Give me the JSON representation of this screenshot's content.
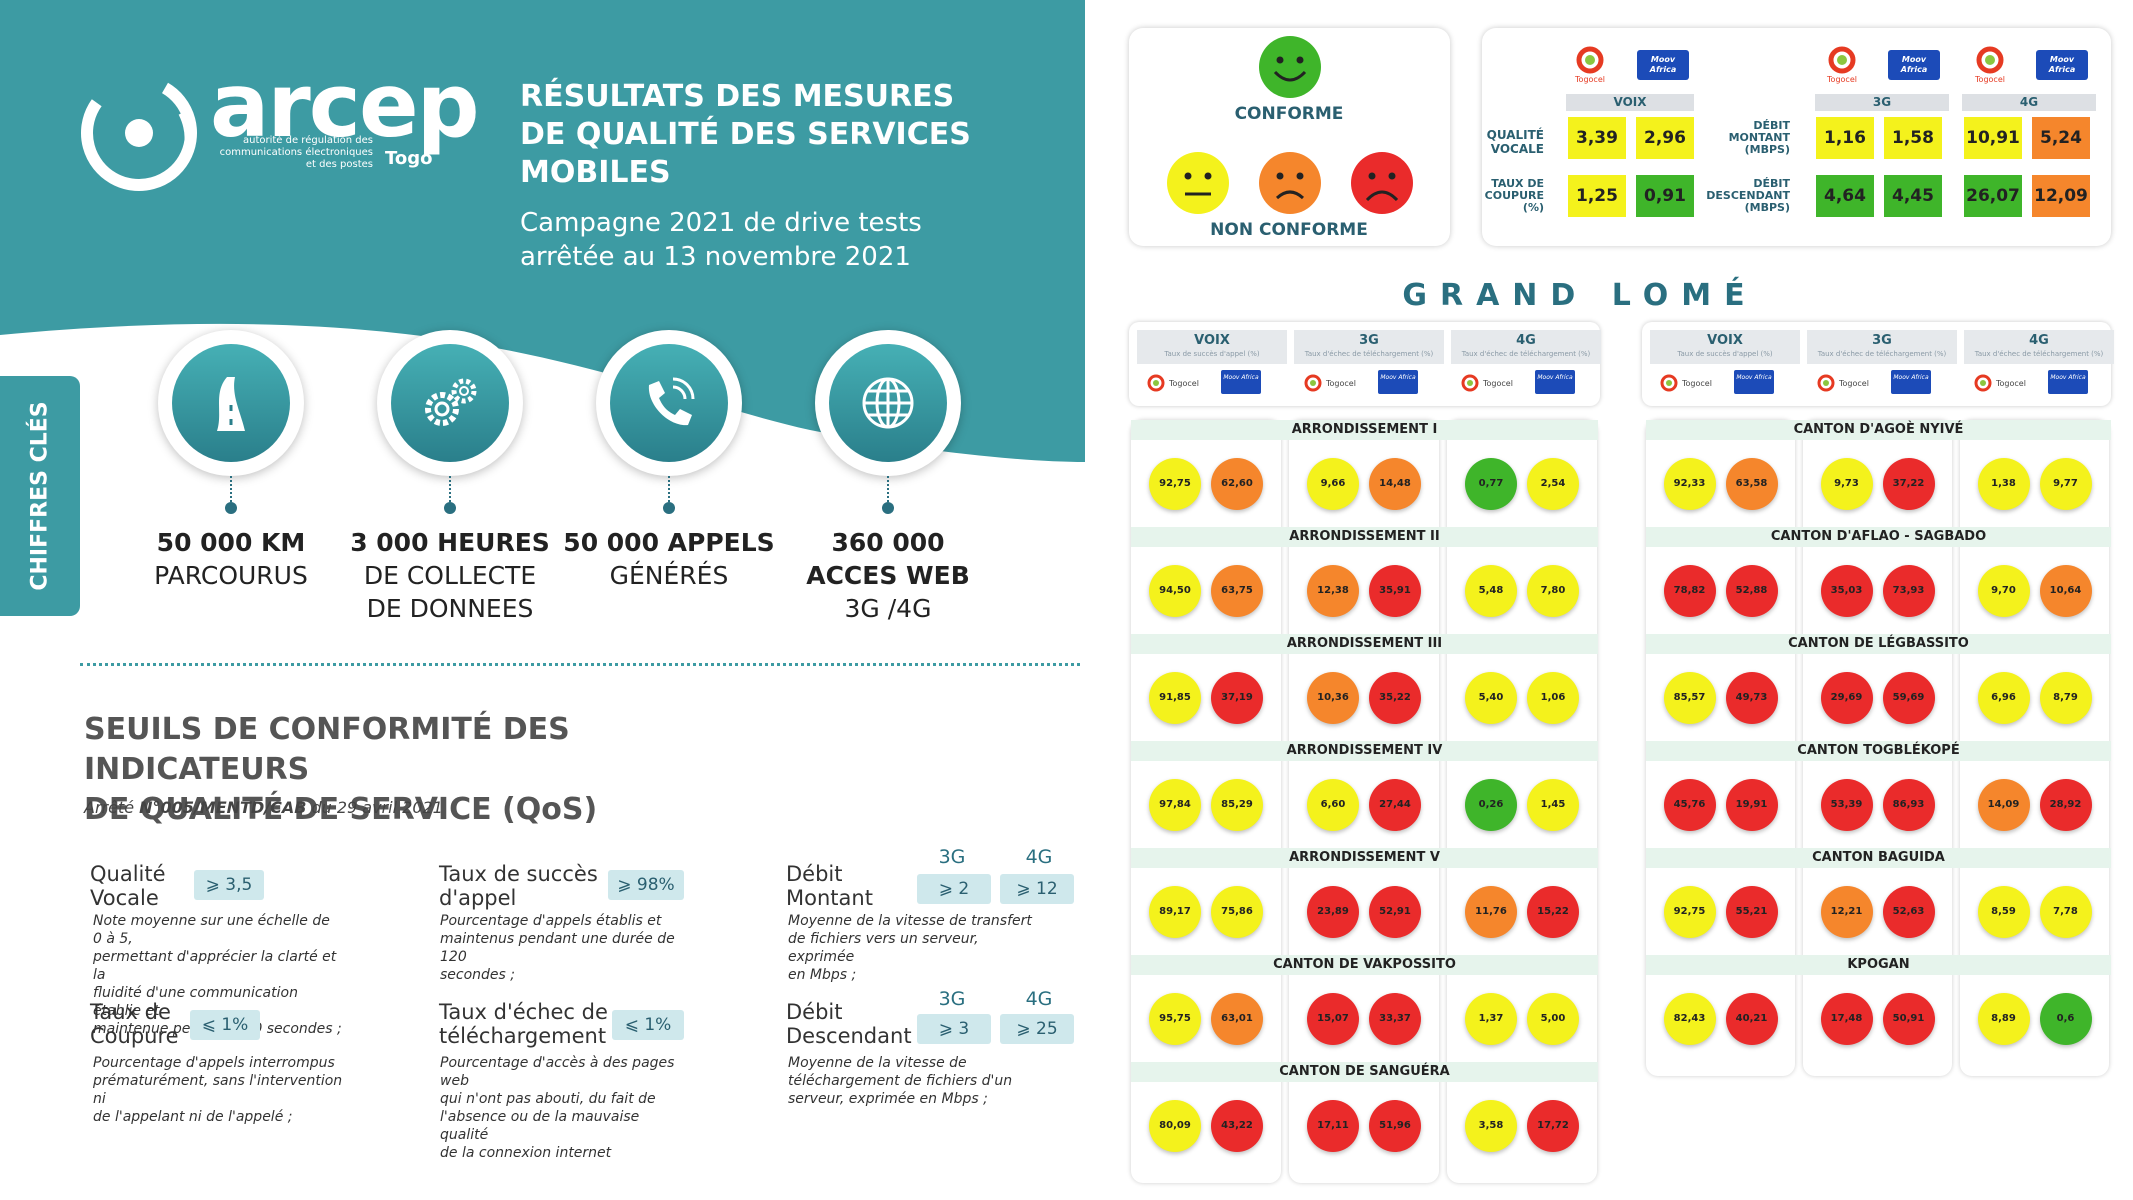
{
  "logo": {
    "text": "arcep",
    "subtitle_lines": [
      "autorité de régulation des",
      "communications électroniques",
      "et des postes"
    ],
    "country": "Togo"
  },
  "title_lines": [
    "RÉSULTATS DES MESURES",
    "DE QUALITÉ DES SERVICES",
    "MOBILES"
  ],
  "subtitle_lines": [
    "Campagne 2021 de drive tests",
    "arrêtée au 13 novembre 2021"
  ],
  "side_tab": "CHIFFRES CLÉS",
  "key_figures": [
    {
      "icon": "road-icon",
      "line1": "50 000 KM",
      "line2": "PARCOURUS",
      "line3": ""
    },
    {
      "icon": "gears-icon",
      "line1": "3 000 HEURES",
      "line2": "DE COLLECTE",
      "line3": "DE DONNEES"
    },
    {
      "icon": "phone-call-icon",
      "line1": "50 000 APPELS",
      "line2": "GÉNÉRÉS",
      "line3": ""
    },
    {
      "icon": "globe-icon",
      "line1": "360 000",
      "line2": "ACCES WEB",
      "line3": "3G /4G"
    }
  ],
  "thresholds": {
    "title_lines": [
      "SEUILS DE CONFORMITÉ DES INDICATEURS",
      "DE QUALITÉ DE SERVICE (QoS)"
    ],
    "arrete_prefix": "Arrêté ",
    "arrete_ref": "N°005/MENTD/CAB",
    "arrete_suffix": " du 29 avril 2021",
    "qualite_vocale": {
      "name_lines": [
        "Qualité",
        "Vocale"
      ],
      "threshold": "⩾ 3,5",
      "desc_lines": [
        "Note moyenne sur une échelle de 0 à 5,",
        "permettant d'apprécier la clarté et la",
        "fluidité d'une communication établie et",
        "maintenue pendant 120 secondes ;"
      ]
    },
    "taux_succes": {
      "name_lines": [
        "Taux de succès",
        "d'appel"
      ],
      "threshold": "⩾ 98%",
      "desc_lines": [
        "Pourcentage d'appels établis et",
        "maintenus pendant une durée de 120",
        "secondes ;"
      ]
    },
    "debit_montant": {
      "name_lines": [
        "Débit",
        "Montant"
      ],
      "head_3g": "3G",
      "head_4g": "4G",
      "threshold_3g": "⩾ 2",
      "threshold_4g": "⩾ 12",
      "desc_lines": [
        "Moyenne de la vitesse de transfert",
        "de fichiers vers un serveur, exprimée",
        "en Mbps ;"
      ]
    },
    "taux_coupure": {
      "name_lines": [
        "Taux de",
        "Coupure"
      ],
      "threshold": "⩽ 1%",
      "desc_lines": [
        "Pourcentage d'appels interrompus",
        "prématurément, sans l'intervention ni",
        "de l'appelant ni de l'appelé ;"
      ]
    },
    "taux_echec": {
      "name_lines": [
        "Taux d'échec de",
        "téléchargement"
      ],
      "threshold": "⩽ 1%",
      "desc_lines": [
        "Pourcentage d'accès à des pages web",
        "qui n'ont pas abouti, du fait de",
        "l'absence ou de la mauvaise qualité",
        "de la connexion internet"
      ]
    },
    "debit_descendant": {
      "name_lines": [
        "Débit",
        "Descendant"
      ],
      "head_3g": "3G",
      "head_4g": "4G",
      "threshold_3g": "⩾ 3",
      "threshold_4g": "⩾ 25",
      "desc_lines": [
        "Moyenne de la vitesse de",
        "téléchargement de fichiers d'un",
        "serveur, exprimée en Mbps ;"
      ]
    }
  },
  "legend": {
    "conforme": "CONFORME",
    "non_conforme": "NON CONFORME",
    "colors": {
      "green": "#3fb52a",
      "yellow": "#f4f21c",
      "orange": "#f5862c",
      "red": "#ea2b2b"
    }
  },
  "operators": {
    "togocel": "Togocel",
    "moov": "Moov Africa"
  },
  "national": {
    "voix_head": "VOIX",
    "head_3g": "3G",
    "head_4g": "4G",
    "qualite_vocale_label": [
      "QUALITÉ",
      "VOCALE"
    ],
    "taux_coupure_label": [
      "TAUX DE",
      "COUPURE",
      "(%)"
    ],
    "debit_montant_label": [
      "DÉBIT",
      "MONTANT",
      "(MBPS)"
    ],
    "debit_descendant_label": [
      "DÉBIT",
      "DESCENDANT",
      "(MBPS)"
    ],
    "qualite_vocale": [
      {
        "v": "3,39",
        "c": "y"
      },
      {
        "v": "2,96",
        "c": "y"
      }
    ],
    "taux_coupure": [
      {
        "v": "1,25",
        "c": "y"
      },
      {
        "v": "0,91",
        "c": "g"
      }
    ],
    "debit_montant": [
      {
        "v": "1,16",
        "c": "y"
      },
      {
        "v": "1,58",
        "c": "y"
      },
      {
        "v": "10,91",
        "c": "y"
      },
      {
        "v": "5,24",
        "c": "o"
      }
    ],
    "debit_descendant": [
      {
        "v": "4,64",
        "c": "g"
      },
      {
        "v": "4,45",
        "c": "g"
      },
      {
        "v": "26,07",
        "c": "g"
      },
      {
        "v": "12,09",
        "c": "o"
      }
    ]
  },
  "grand_lome": {
    "title": "GRAND LOMÉ",
    "col_headers": [
      {
        "name": "VOIX",
        "sub": "Taux de succès d'appel (%)"
      },
      {
        "name": "3G",
        "sub": "Taux d'échec de téléchargement (%)"
      },
      {
        "name": "4G",
        "sub": "Taux d'échec de téléchargement (%)"
      }
    ],
    "left": [
      {
        "name": "ARRONDISSEMENT I",
        "vals": [
          [
            "92,75",
            "y"
          ],
          [
            "62,60",
            "o"
          ],
          [
            "9,66",
            "y"
          ],
          [
            "14,48",
            "o"
          ],
          [
            "0,77",
            "g"
          ],
          [
            "2,54",
            "y"
          ]
        ]
      },
      {
        "name": "ARRONDISSEMENT II",
        "vals": [
          [
            "94,50",
            "y"
          ],
          [
            "63,75",
            "o"
          ],
          [
            "12,38",
            "o"
          ],
          [
            "35,91",
            "r"
          ],
          [
            "5,48",
            "y"
          ],
          [
            "7,80",
            "y"
          ]
        ]
      },
      {
        "name": "ARRONDISSEMENT III",
        "vals": [
          [
            "91,85",
            "y"
          ],
          [
            "37,19",
            "r"
          ],
          [
            "10,36",
            "o"
          ],
          [
            "35,22",
            "r"
          ],
          [
            "5,40",
            "y"
          ],
          [
            "1,06",
            "y"
          ]
        ]
      },
      {
        "name": "ARRONDISSEMENT IV",
        "vals": [
          [
            "97,84",
            "y"
          ],
          [
            "85,29",
            "y"
          ],
          [
            "6,60",
            "y"
          ],
          [
            "27,44",
            "r"
          ],
          [
            "0,26",
            "g"
          ],
          [
            "1,45",
            "y"
          ]
        ]
      },
      {
        "name": "ARRONDISSEMENT V",
        "vals": [
          [
            "89,17",
            "y"
          ],
          [
            "75,86",
            "y"
          ],
          [
            "23,89",
            "r"
          ],
          [
            "52,91",
            "r"
          ],
          [
            "11,76",
            "o"
          ],
          [
            "15,22",
            "r"
          ]
        ]
      },
      {
        "name": "CANTON DE VAKPOSSITO",
        "vals": [
          [
            "95,75",
            "y"
          ],
          [
            "63,01",
            "o"
          ],
          [
            "15,07",
            "r"
          ],
          [
            "33,37",
            "r"
          ],
          [
            "1,37",
            "y"
          ],
          [
            "5,00",
            "y"
          ]
        ]
      },
      {
        "name": "CANTON DE SANGUÉRA",
        "vals": [
          [
            "80,09",
            "y"
          ],
          [
            "43,22",
            "r"
          ],
          [
            "17,11",
            "r"
          ],
          [
            "51,96",
            "r"
          ],
          [
            "3,58",
            "y"
          ],
          [
            "17,72",
            "r"
          ]
        ]
      }
    ],
    "right": [
      {
        "name": "CANTON D'AGOÈ NYIVÉ",
        "vals": [
          [
            "92,33",
            "y"
          ],
          [
            "63,58",
            "o"
          ],
          [
            "9,73",
            "y"
          ],
          [
            "37,22",
            "r"
          ],
          [
            "1,38",
            "y"
          ],
          [
            "9,77",
            "y"
          ]
        ]
      },
      {
        "name": "CANTON D'AFLAO - SAGBADO",
        "vals": [
          [
            "78,82",
            "r"
          ],
          [
            "52,88",
            "r"
          ],
          [
            "35,03",
            "r"
          ],
          [
            "73,93",
            "r"
          ],
          [
            "9,70",
            "y"
          ],
          [
            "10,64",
            "o"
          ]
        ]
      },
      {
        "name": "CANTON DE LÉGBASSITO",
        "vals": [
          [
            "85,57",
            "y"
          ],
          [
            "49,73",
            "r"
          ],
          [
            "29,69",
            "r"
          ],
          [
            "59,69",
            "r"
          ],
          [
            "6,96",
            "y"
          ],
          [
            "8,79",
            "y"
          ]
        ]
      },
      {
        "name": "CANTON TOGBLÉKOPÉ",
        "vals": [
          [
            "45,76",
            "r"
          ],
          [
            "19,91",
            "r"
          ],
          [
            "53,39",
            "r"
          ],
          [
            "86,93",
            "r"
          ],
          [
            "14,09",
            "o"
          ],
          [
            "28,92",
            "r"
          ]
        ]
      },
      {
        "name": "CANTON BAGUIDA",
        "vals": [
          [
            "92,75",
            "y"
          ],
          [
            "55,21",
            "r"
          ],
          [
            "12,21",
            "o"
          ],
          [
            "52,63",
            "r"
          ],
          [
            "8,59",
            "y"
          ],
          [
            "7,78",
            "y"
          ]
        ]
      },
      {
        "name": "KPOGAN",
        "vals": [
          [
            "82,43",
            "y"
          ],
          [
            "40,21",
            "r"
          ],
          [
            "17,48",
            "r"
          ],
          [
            "50,91",
            "r"
          ],
          [
            "8,89",
            "y"
          ],
          [
            "0,6",
            "g"
          ]
        ]
      }
    ]
  }
}
